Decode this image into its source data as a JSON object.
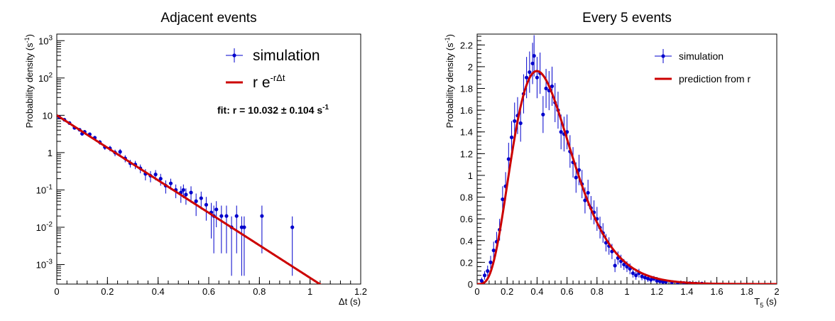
{
  "chart_data": [
    {
      "type": "scatter",
      "title": "Adjacent events",
      "xlabel": "Δt (s)",
      "ylabel_main": "Probability density (s",
      "ylabel_sup": "-1",
      "ylabel_end": ")",
      "xlim": [
        0,
        1.2
      ],
      "ylim": [
        0.0003,
        1500
      ],
      "yscale": "log",
      "xticks": [
        0,
        0.2,
        0.4,
        0.6,
        0.8,
        1,
        1.2
      ],
      "xtick_labels": [
        "0",
        "0.2",
        "0.4",
        "0.6",
        "0.8",
        "1",
        "1.2"
      ],
      "yticks": [
        {
          "value": 0.001,
          "base": "10",
          "exp": "-3"
        },
        {
          "value": 0.01,
          "base": "10",
          "exp": "-2"
        },
        {
          "value": 0.1,
          "base": "10",
          "exp": "-1"
        },
        {
          "value": 1,
          "base": "1",
          "exp": ""
        },
        {
          "value": 10,
          "base": "10",
          "exp": ""
        },
        {
          "value": 100,
          "base": "10",
          "exp": "2"
        },
        {
          "value": 1000,
          "base": "10",
          "exp": "3"
        }
      ],
      "legend": {
        "placement": "top-right",
        "entries": [
          {
            "kind": "points",
            "label": "simulation"
          },
          {
            "kind": "line",
            "label_main": "r e",
            "label_sup": "-rΔt"
          }
        ]
      },
      "annotation": {
        "main": "fit: r = 10.032 ± 0.104 s",
        "sup": "-1"
      },
      "fit_rate": 10.032,
      "fit_xmax": 1.05,
      "series": [
        {
          "name": "simulation",
          "color": "#0000cc",
          "points": [
            [
              0.01,
              8.9,
              0.6
            ],
            [
              0.03,
              7.6,
              0.55
            ],
            [
              0.05,
              6.2,
              0.5
            ],
            [
              0.07,
              4.6,
              0.45
            ],
            [
              0.09,
              4.1,
              0.4
            ],
            [
              0.1,
              3.2,
              0.35
            ],
            [
              0.11,
              3.6,
              0.38
            ],
            [
              0.13,
              3.1,
              0.35
            ],
            [
              0.15,
              2.5,
              0.3
            ],
            [
              0.17,
              1.9,
              0.27
            ],
            [
              0.19,
              1.4,
              0.22
            ],
            [
              0.21,
              1.3,
              0.22
            ],
            [
              0.23,
              1.0,
              0.2
            ],
            [
              0.25,
              1.05,
              0.2
            ],
            [
              0.27,
              0.7,
              0.15
            ],
            [
              0.29,
              0.52,
              0.12
            ],
            [
              0.31,
              0.48,
              0.12
            ],
            [
              0.33,
              0.38,
              0.1
            ],
            [
              0.35,
              0.27,
              0.09
            ],
            [
              0.37,
              0.24,
              0.08
            ],
            [
              0.39,
              0.26,
              0.08
            ],
            [
              0.41,
              0.2,
              0.07
            ],
            [
              0.43,
              0.13,
              0.05
            ],
            [
              0.45,
              0.15,
              0.05
            ],
            [
              0.47,
              0.1,
              0.04
            ],
            [
              0.49,
              0.085,
              0.04
            ],
            [
              0.5,
              0.1,
              0.04
            ],
            [
              0.51,
              0.075,
              0.035
            ],
            [
              0.53,
              0.085,
              0.04
            ],
            [
              0.55,
              0.05,
              0.03
            ],
            [
              0.57,
              0.06,
              0.03
            ],
            [
              0.59,
              0.04,
              0.025
            ],
            [
              0.61,
              0.025,
              0.02
            ],
            [
              0.62,
              0.02,
              0.018
            ],
            [
              0.63,
              0.03,
              0.02
            ],
            [
              0.65,
              0.02,
              0.018
            ],
            [
              0.67,
              0.02,
              0.018
            ],
            [
              0.69,
              0.01,
              0.0095
            ],
            [
              0.71,
              0.02,
              0.018
            ],
            [
              0.73,
              0.01,
              0.0095
            ],
            [
              0.74,
              0.01,
              0.0095
            ],
            [
              0.81,
              0.02,
              0.018
            ],
            [
              0.93,
              0.01,
              0.0095
            ]
          ]
        },
        {
          "name": "r e^-rΔt",
          "color": "#cc0000"
        }
      ]
    },
    {
      "type": "scatter",
      "title": "Every 5 events",
      "xlabel_main": "T",
      "xlabel_sub": "5",
      "xlabel_end": " (s)",
      "ylabel_main": "Probability density (s",
      "ylabel_sup": "-1",
      "ylabel_end": ")",
      "xlim": [
        0,
        2
      ],
      "ylim": [
        0,
        2.3
      ],
      "yscale": "linear",
      "xticks": [
        0,
        0.2,
        0.4,
        0.6,
        0.8,
        1,
        1.2,
        1.4,
        1.6,
        1.8,
        2
      ],
      "xtick_labels": [
        "0",
        "0.2",
        "0.4",
        "0.6",
        "0.8",
        "1",
        "1.2",
        "1.4",
        "1.6",
        "1.8",
        "2"
      ],
      "yticks": [
        0,
        0.2,
        0.4,
        0.6,
        0.8,
        1,
        1.2,
        1.4,
        1.6,
        1.8,
        2,
        2.2
      ],
      "ytick_labels": [
        "0",
        "0.2",
        "0.4",
        "0.6",
        "0.8",
        "1",
        "1.2",
        "1.4",
        "1.6",
        "1.8",
        "2",
        "2.2"
      ],
      "legend": {
        "placement": "top-right",
        "entries": [
          {
            "kind": "points",
            "label": "simulation"
          },
          {
            "kind": "line",
            "label": "prediction from r"
          }
        ]
      },
      "gamma_shape": 5,
      "gamma_rate": 10.032,
      "series": [
        {
          "name": "simulation",
          "color": "#0000cc",
          "points": [
            [
              0.03,
              0.03,
              0.03
            ],
            [
              0.05,
              0.08,
              0.04
            ],
            [
              0.07,
              0.12,
              0.05
            ],
            [
              0.09,
              0.2,
              0.06
            ],
            [
              0.11,
              0.31,
              0.08
            ],
            [
              0.13,
              0.39,
              0.09
            ],
            [
              0.15,
              0.5,
              0.1
            ],
            [
              0.17,
              0.78,
              0.12
            ],
            [
              0.19,
              0.9,
              0.13
            ],
            [
              0.21,
              1.15,
              0.15
            ],
            [
              0.23,
              1.35,
              0.15
            ],
            [
              0.25,
              1.5,
              0.17
            ],
            [
              0.27,
              1.55,
              0.17
            ],
            [
              0.29,
              1.48,
              0.17
            ],
            [
              0.31,
              1.75,
              0.18
            ],
            [
              0.33,
              1.9,
              0.19
            ],
            [
              0.35,
              1.95,
              0.19
            ],
            [
              0.37,
              2.03,
              0.19
            ],
            [
              0.38,
              2.1,
              0.19
            ],
            [
              0.4,
              1.9,
              0.19
            ],
            [
              0.42,
              1.94,
              0.19
            ],
            [
              0.44,
              1.56,
              0.17
            ],
            [
              0.46,
              1.8,
              0.18
            ],
            [
              0.48,
              1.78,
              0.18
            ],
            [
              0.5,
              1.82,
              0.18
            ],
            [
              0.52,
              1.67,
              0.18
            ],
            [
              0.54,
              1.6,
              0.17
            ],
            [
              0.56,
              1.4,
              0.16
            ],
            [
              0.58,
              1.38,
              0.16
            ],
            [
              0.6,
              1.4,
              0.16
            ],
            [
              0.62,
              1.22,
              0.15
            ],
            [
              0.64,
              1.12,
              0.14
            ],
            [
              0.66,
              0.98,
              0.14
            ],
            [
              0.68,
              1.05,
              0.14
            ],
            [
              0.7,
              0.92,
              0.13
            ],
            [
              0.72,
              0.77,
              0.12
            ],
            [
              0.74,
              0.84,
              0.12
            ],
            [
              0.76,
              0.7,
              0.11
            ],
            [
              0.78,
              0.66,
              0.11
            ],
            [
              0.8,
              0.6,
              0.11
            ],
            [
              0.82,
              0.52,
              0.1
            ],
            [
              0.84,
              0.47,
              0.09
            ],
            [
              0.86,
              0.38,
              0.08
            ],
            [
              0.88,
              0.35,
              0.08
            ],
            [
              0.9,
              0.3,
              0.07
            ],
            [
              0.92,
              0.17,
              0.06
            ],
            [
              0.94,
              0.24,
              0.06
            ],
            [
              0.96,
              0.21,
              0.06
            ],
            [
              0.98,
              0.18,
              0.05
            ],
            [
              1.0,
              0.16,
              0.05
            ],
            [
              1.02,
              0.14,
              0.05
            ],
            [
              1.04,
              0.1,
              0.04
            ],
            [
              1.06,
              0.08,
              0.04
            ],
            [
              1.08,
              0.1,
              0.04
            ],
            [
              1.1,
              0.07,
              0.035
            ],
            [
              1.12,
              0.06,
              0.03
            ],
            [
              1.14,
              0.05,
              0.03
            ],
            [
              1.16,
              0.04,
              0.025
            ],
            [
              1.18,
              0.05,
              0.025
            ],
            [
              1.2,
              0.03,
              0.02
            ],
            [
              1.22,
              0.025,
              0.02
            ],
            [
              1.24,
              0.02,
              0.02
            ],
            [
              1.26,
              0.02,
              0.015
            ],
            [
              1.3,
              0.015,
              0.015
            ],
            [
              1.34,
              0.01,
              0.01
            ],
            [
              1.38,
              0.01,
              0.01
            ],
            [
              1.42,
              0.008,
              0.008
            ],
            [
              1.46,
              0.005,
              0.005
            ],
            [
              1.5,
              0.005,
              0.005
            ]
          ]
        },
        {
          "name": "prediction from r",
          "color": "#cc0000"
        }
      ]
    }
  ]
}
